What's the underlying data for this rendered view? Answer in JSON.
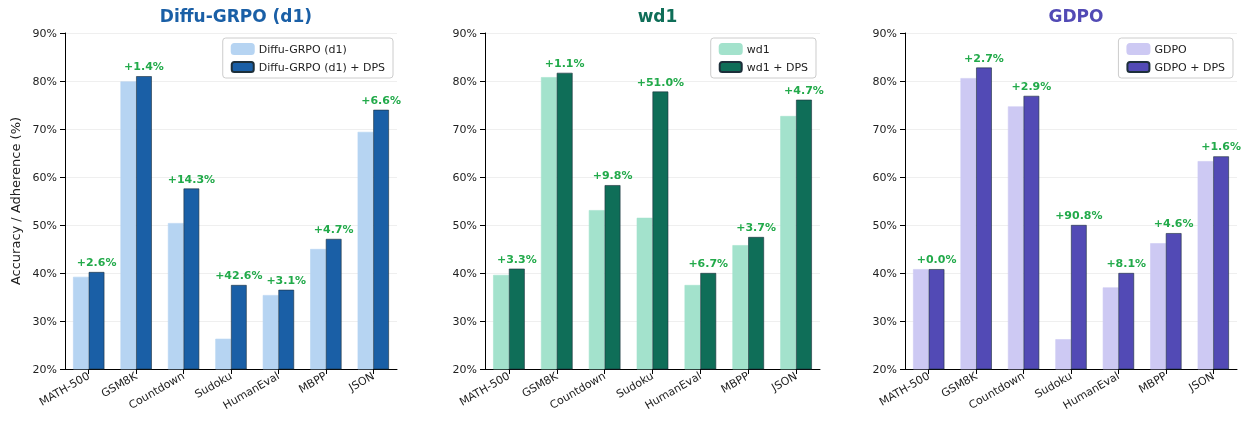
{
  "chart_data": [
    {
      "type": "bar",
      "title": "Diffu-GRPO (d1)",
      "ylabel": "Accuracy / Adherence (%)",
      "categories": [
        "MATH-500",
        "GSM8K",
        "Countdown",
        "Sudoku",
        "HumanEval",
        "MBPP",
        "JSON"
      ],
      "series": [
        {
          "name": "Diffu-GRPO (d1)",
          "color": "#b6d4f2",
          "values": [
            39.2,
            79.9,
            50.4,
            26.3,
            35.4,
            45.0,
            69.4
          ]
        },
        {
          "name": "Diffu-GRPO (d1) + DPS",
          "color": "#1a5fa6",
          "values": [
            40.2,
            81.0,
            57.6,
            37.5,
            36.5,
            47.1,
            74.0
          ]
        }
      ],
      "annotations": [
        {
          "text": "+2.6%",
          "x": "MATH-500",
          "y": 40.2
        },
        {
          "text": "+1.4%",
          "x": "GSM8K",
          "y": 81.0
        },
        {
          "text": "+14.3%",
          "x": "Countdown",
          "y": 57.6
        },
        {
          "text": "+42.6%",
          "x": "Sudoku",
          "y": 37.5
        },
        {
          "text": "+3.1%",
          "x": "HumanEval",
          "y": 36.5
        },
        {
          "text": "+4.7%",
          "x": "MBPP",
          "y": 47.1
        },
        {
          "text": "+6.6%",
          "x": "JSON",
          "y": 74.0
        }
      ],
      "ylim": [
        20,
        90
      ],
      "yticks": [
        {
          "value": 20,
          "label": "20%"
        },
        {
          "value": 30,
          "label": "30%"
        },
        {
          "value": 40,
          "label": "40%"
        },
        {
          "value": 50,
          "label": "50%"
        },
        {
          "value": 60,
          "label": "60%"
        },
        {
          "value": 70,
          "label": "70%"
        },
        {
          "value": 80,
          "label": "80%"
        },
        {
          "value": 90,
          "label": "90%"
        }
      ],
      "grid": "y",
      "legend": "top right"
    },
    {
      "type": "bar",
      "title": "wd1",
      "categories": [
        "MATH-500",
        "GSM8K",
        "Countdown",
        "Sudoku",
        "HumanEval",
        "MBPP",
        "JSON"
      ],
      "series": [
        {
          "name": "wd1",
          "color": "#a3e2cc",
          "values": [
            39.6,
            80.8,
            53.1,
            51.5,
            37.5,
            45.8,
            72.7
          ]
        },
        {
          "name": "wd1 + DPS",
          "color": "#0f6e58",
          "values": [
            40.9,
            81.7,
            58.3,
            77.8,
            40.0,
            47.5,
            76.1
          ]
        }
      ],
      "annotations": [
        {
          "text": "+3.3%",
          "x": "MATH-500",
          "y": 40.9
        },
        {
          "text": "+1.1%",
          "x": "GSM8K",
          "y": 81.7
        },
        {
          "text": "+9.8%",
          "x": "Countdown",
          "y": 58.3
        },
        {
          "text": "+51.0%",
          "x": "Sudoku",
          "y": 77.8
        },
        {
          "text": "+6.7%",
          "x": "HumanEval",
          "y": 40.0
        },
        {
          "text": "+3.7%",
          "x": "MBPP",
          "y": 47.5
        },
        {
          "text": "+4.7%",
          "x": "JSON",
          "y": 76.1
        }
      ],
      "ylim": [
        20,
        90
      ],
      "yticks": [
        {
          "value": 20,
          "label": "20%"
        },
        {
          "value": 30,
          "label": "30%"
        },
        {
          "value": 40,
          "label": "40%"
        },
        {
          "value": 50,
          "label": "50%"
        },
        {
          "value": 60,
          "label": "60%"
        },
        {
          "value": 70,
          "label": "70%"
        },
        {
          "value": 80,
          "label": "80%"
        },
        {
          "value": 90,
          "label": "90%"
        }
      ],
      "grid": "y",
      "legend": "top right"
    },
    {
      "type": "bar",
      "title": "GDPO",
      "categories": [
        "MATH-500",
        "GSM8K",
        "Countdown",
        "Sudoku",
        "HumanEval",
        "MBPP",
        "JSON"
      ],
      "series": [
        {
          "name": "GDPO",
          "color": "#cdc9f3",
          "values": [
            40.8,
            80.6,
            74.7,
            26.2,
            37.0,
            46.2,
            63.3
          ]
        },
        {
          "name": "GDPO + DPS",
          "color": "#524ab5",
          "values": [
            40.8,
            82.8,
            76.9,
            50.0,
            40.0,
            48.3,
            64.3
          ]
        }
      ],
      "annotations": [
        {
          "text": "+0.0%",
          "x": "MATH-500",
          "y": 40.8
        },
        {
          "text": "+2.7%",
          "x": "GSM8K",
          "y": 82.8
        },
        {
          "text": "+2.9%",
          "x": "Countdown",
          "y": 76.9
        },
        {
          "text": "+90.8%",
          "x": "Sudoku",
          "y": 50.0
        },
        {
          "text": "+8.1%",
          "x": "HumanEval",
          "y": 40.0
        },
        {
          "text": "+4.6%",
          "x": "MBPP",
          "y": 48.3
        },
        {
          "text": "+1.6%",
          "x": "JSON",
          "y": 64.3
        }
      ],
      "ylim": [
        20,
        90
      ],
      "yticks": [
        {
          "value": 20,
          "label": "20%"
        },
        {
          "value": 30,
          "label": "30%"
        },
        {
          "value": 40,
          "label": "40%"
        },
        {
          "value": 50,
          "label": "50%"
        },
        {
          "value": 60,
          "label": "60%"
        },
        {
          "value": 70,
          "label": "70%"
        },
        {
          "value": 80,
          "label": "80%"
        },
        {
          "value": 90,
          "label": "90%"
        }
      ],
      "grid": "y",
      "legend": "top right"
    }
  ]
}
